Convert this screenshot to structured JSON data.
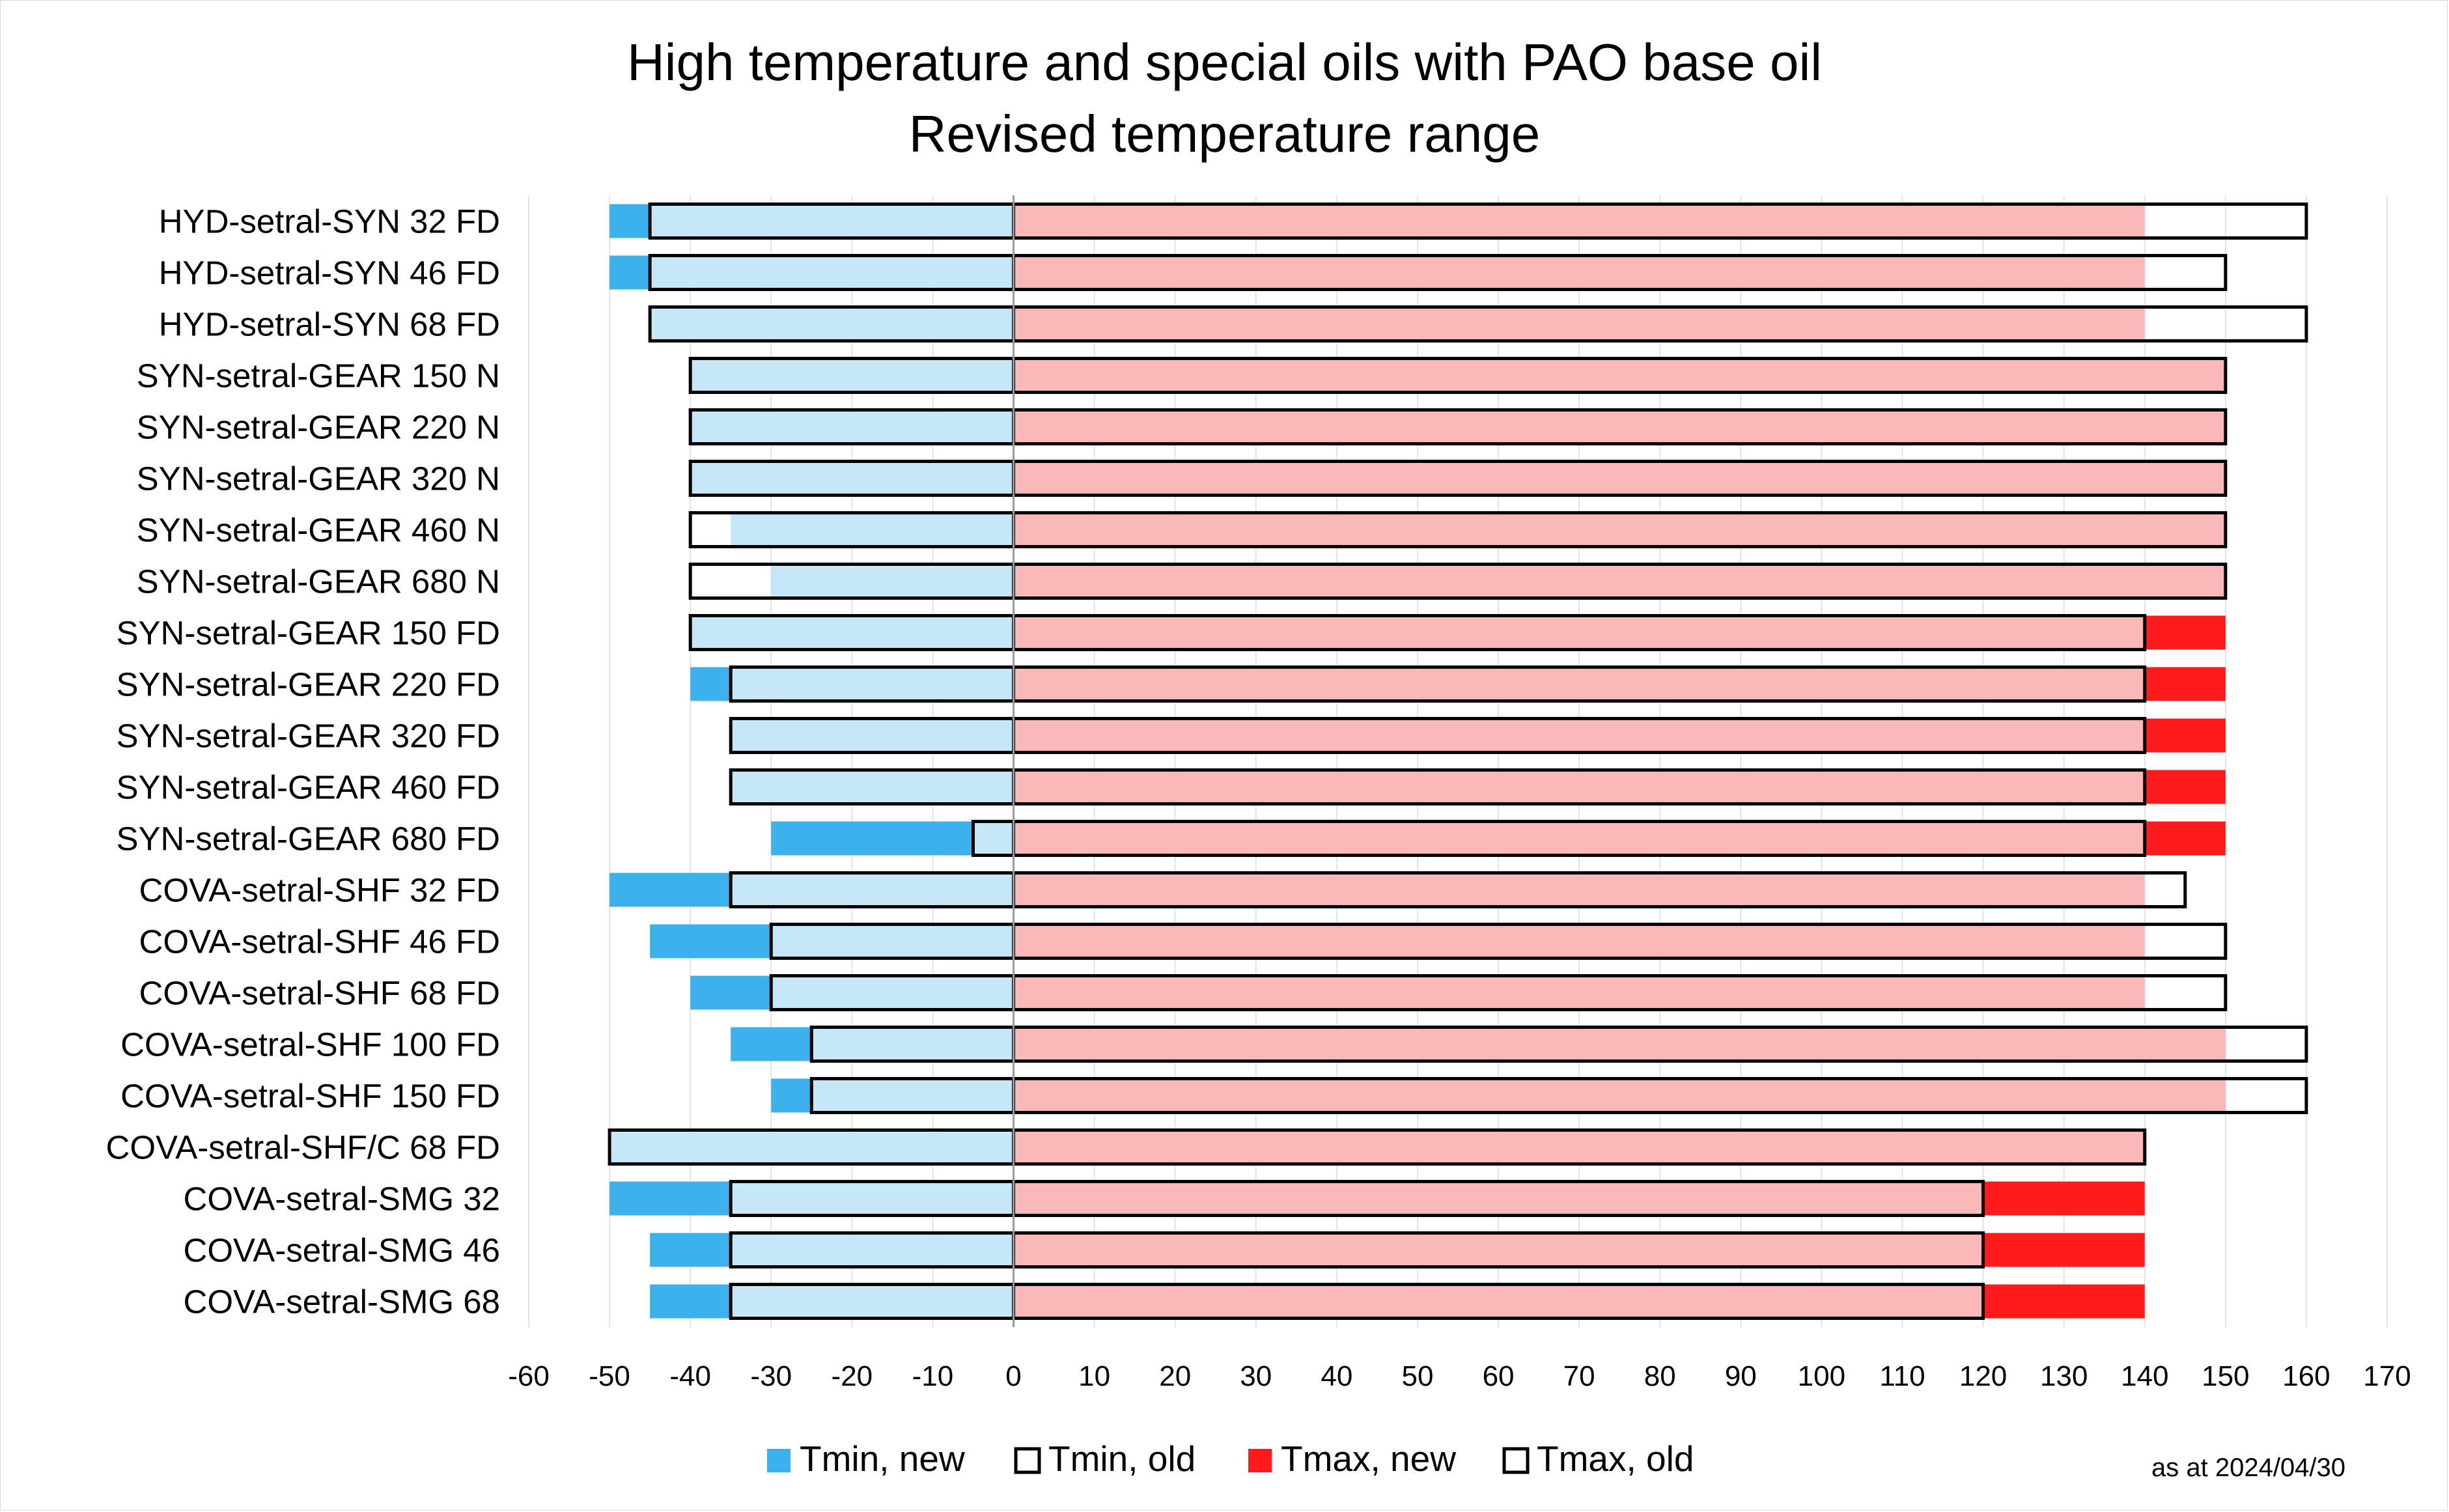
{
  "chart_data": {
    "type": "bar",
    "title": "High temperature and special oils with PAO base oil",
    "subtitle": "Revised temperature range",
    "note": "as at 2024/04/30",
    "xlim": [
      -60,
      170
    ],
    "xticks": [
      -60,
      -50,
      -40,
      -30,
      -20,
      -10,
      0,
      10,
      20,
      30,
      40,
      50,
      60,
      70,
      80,
      90,
      100,
      110,
      120,
      130,
      140,
      150,
      160,
      170
    ],
    "grid": true,
    "legend_position": "bottom",
    "colors": {
      "tmin_new": "#3cb1eb",
      "tmin_old_fill": "#c5e7f8",
      "tmax_new": "#ff1b1b",
      "tmax_old_fill": "#fbb8b8",
      "outline": "#000000",
      "grid": "#e3e3e3"
    },
    "categories": [
      "HYD-setral-SYN 32 FD",
      "HYD-setral-SYN 46 FD",
      "HYD-setral-SYN 68 FD",
      "SYN-setral-GEAR 150 N",
      "SYN-setral-GEAR 220 N",
      "SYN-setral-GEAR 320 N",
      "SYN-setral-GEAR 460 N",
      "SYN-setral-GEAR 680 N",
      "SYN-setral-GEAR 150 FD",
      "SYN-setral-GEAR 220 FD",
      "SYN-setral-GEAR 320 FD",
      "SYN-setral-GEAR 460 FD",
      "SYN-setral-GEAR 680 FD",
      "COVA-setral-SHF 32 FD",
      "COVA-setral-SHF 46 FD",
      "COVA-setral-SHF 68 FD",
      "COVA-setral-SHF 100 FD",
      "COVA-setral-SHF 150 FD",
      "COVA-setral-SHF/C 68 FD",
      "COVA-setral-SMG 32",
      "COVA-setral-SMG 46",
      "COVA-setral-SMG 68"
    ],
    "series": [
      {
        "name": "Tmin, new",
        "values": [
          -50,
          -50,
          -45,
          -40,
          -40,
          -40,
          -35,
          -30,
          -40,
          -40,
          -35,
          -35,
          -30,
          -50,
          -45,
          -40,
          -35,
          -30,
          -50,
          -50,
          -45,
          -45
        ]
      },
      {
        "name": "Tmin, old",
        "values": [
          -45,
          -45,
          -45,
          -40,
          -40,
          -40,
          -40,
          -40,
          -40,
          -35,
          -35,
          -35,
          -5,
          -35,
          -30,
          -30,
          -25,
          -25,
          -50,
          -35,
          -35,
          -35
        ]
      },
      {
        "name": "Tmax, new",
        "values": [
          140,
          140,
          140,
          150,
          150,
          150,
          150,
          150,
          150,
          150,
          150,
          150,
          150,
          140,
          140,
          140,
          150,
          150,
          140,
          140,
          140,
          140
        ]
      },
      {
        "name": "Tmax, old",
        "values": [
          160,
          150,
          160,
          150,
          150,
          150,
          150,
          150,
          140,
          140,
          140,
          140,
          140,
          145,
          150,
          150,
          160,
          160,
          140,
          120,
          120,
          120
        ]
      }
    ]
  }
}
